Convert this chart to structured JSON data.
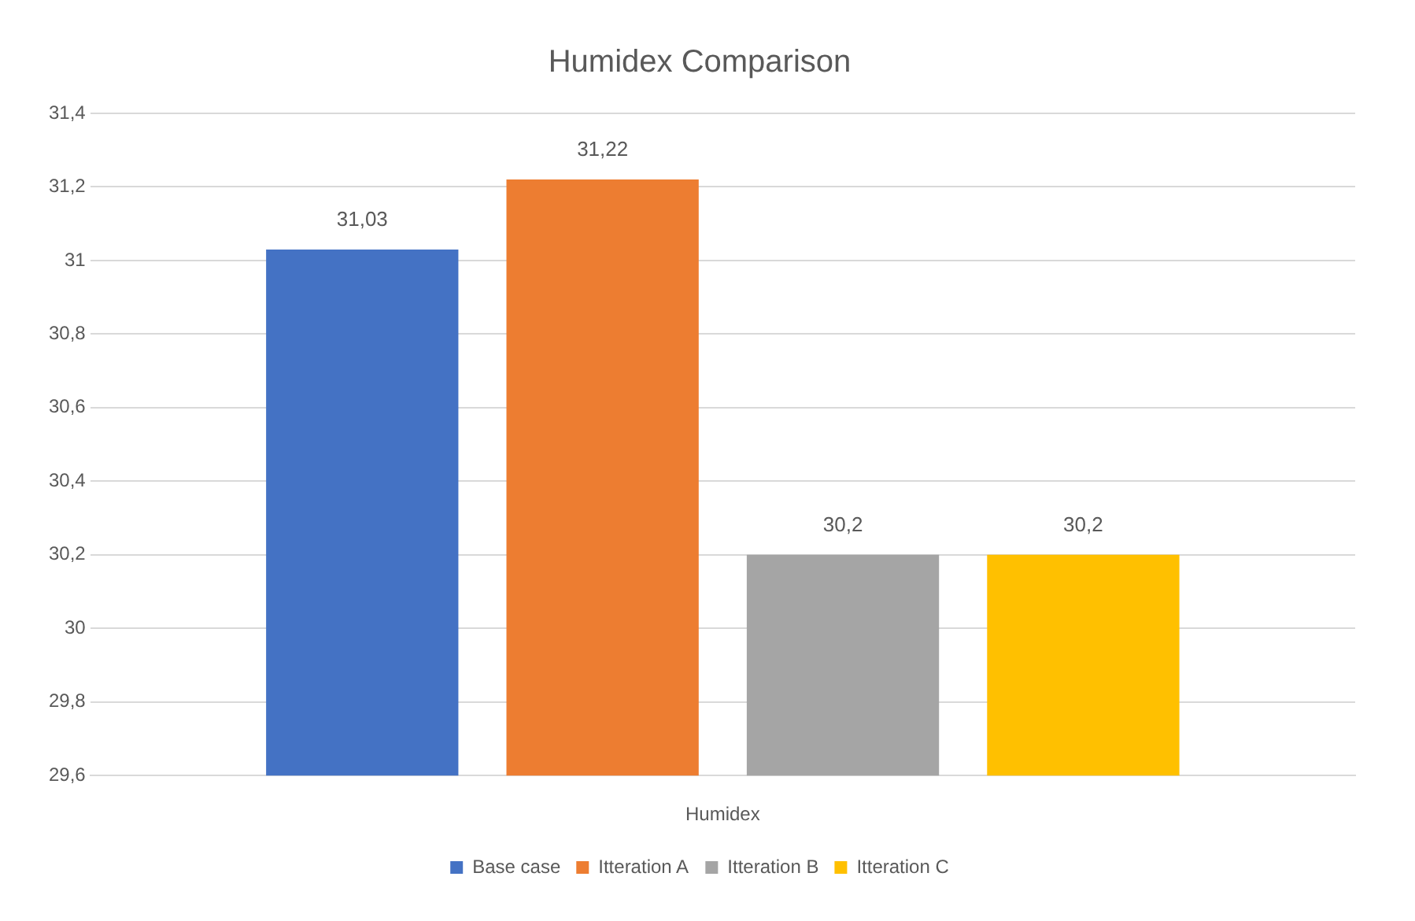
{
  "chart_data": {
    "type": "bar",
    "title": "Humidex Comparison",
    "categories": [
      "Humidex"
    ],
    "series": [
      {
        "name": "Base case",
        "color": "#4472c4",
        "values": [
          31.03
        ],
        "value_labels": [
          "31,03"
        ]
      },
      {
        "name": "Itteration A",
        "color": "#ed7d31",
        "values": [
          31.22
        ],
        "value_labels": [
          "31,22"
        ]
      },
      {
        "name": "Itteration B",
        "color": "#a5a5a5",
        "values": [
          30.2
        ],
        "value_labels": [
          "30,2"
        ]
      },
      {
        "name": "Itteration C",
        "color": "#ffc000",
        "values": [
          30.2
        ],
        "value_labels": [
          "30,2"
        ]
      }
    ],
    "ylim": [
      29.6,
      31.4
    ],
    "yticks": [
      {
        "value": 29.6,
        "label": "29,6"
      },
      {
        "value": 29.8,
        "label": "29,8"
      },
      {
        "value": 30,
        "label": "30"
      },
      {
        "value": 30.2,
        "label": "30,2"
      },
      {
        "value": 30.4,
        "label": "30,4"
      },
      {
        "value": 30.6,
        "label": "30,6"
      },
      {
        "value": 30.8,
        "label": "30,8"
      },
      {
        "value": 31,
        "label": "31"
      },
      {
        "value": 31.2,
        "label": "31,2"
      },
      {
        "value": 31.4,
        "label": "31,4"
      }
    ],
    "grid": "y",
    "legend": "bottom"
  }
}
